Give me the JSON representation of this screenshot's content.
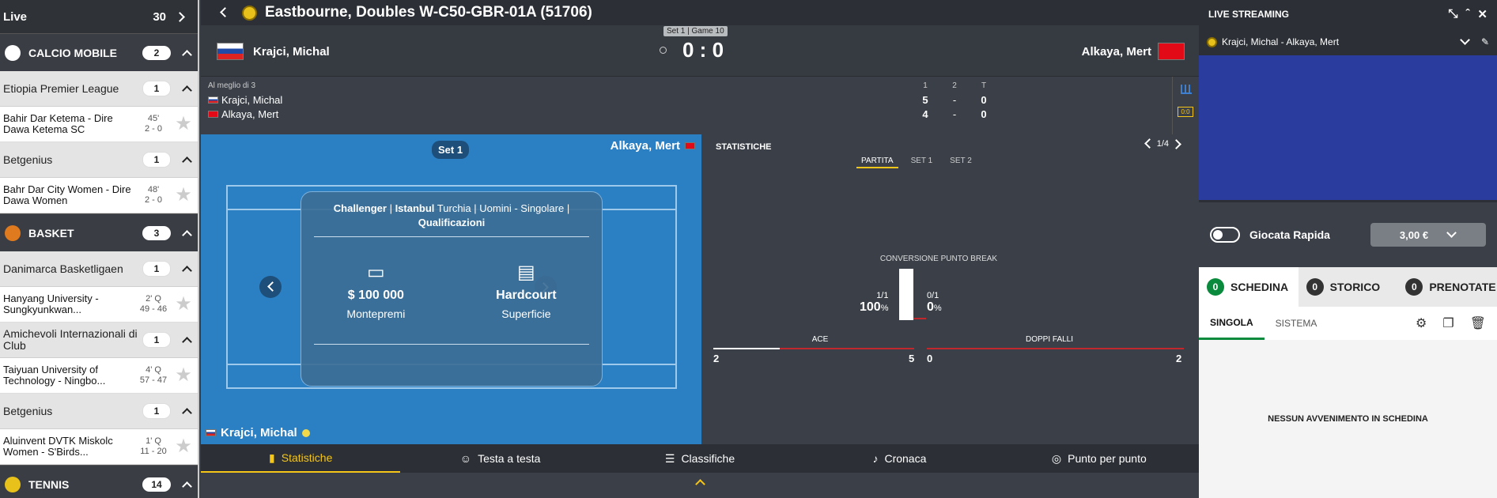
{
  "sidebar": {
    "live_label": "Live",
    "live_count": "30",
    "rows": [
      {
        "kind": "sport",
        "name": "CALCIO MOBILE",
        "count": "2",
        "color": "#ffffff"
      },
      {
        "kind": "comp",
        "name": "Etiopia Premier League",
        "count": "1"
      },
      {
        "kind": "match",
        "name": "Bahir Dar Ketema - Dire Dawa Ketema SC",
        "time": "45'",
        "score": "2 - 0"
      },
      {
        "kind": "comp",
        "name": "Betgenius",
        "count": "1"
      },
      {
        "kind": "match",
        "name": "Bahr Dar City Women - Dire Dawa Women",
        "time": "48'",
        "score": "2 - 0"
      },
      {
        "kind": "sport",
        "name": "BASKET",
        "count": "3",
        "color": "#e07a1f"
      },
      {
        "kind": "comp",
        "name": "Danimarca Basketligaen",
        "count": "1"
      },
      {
        "kind": "match",
        "name": "Hanyang University - Sungkyunkwan...",
        "time": "2' Q",
        "score": "49 - 46"
      },
      {
        "kind": "comp",
        "name": "Amichevoli Internazionali di Club",
        "count": "1"
      },
      {
        "kind": "match",
        "name": "Taiyuan University of Technology - Ningbo...",
        "time": "4' Q",
        "score": "57 - 47"
      },
      {
        "kind": "comp",
        "name": "Betgenius",
        "count": "1"
      },
      {
        "kind": "match",
        "name": "Aluinvent DVTK Miskolc Women - S'Birds...",
        "time": "1' Q",
        "score": "11 - 20"
      },
      {
        "kind": "sport",
        "name": "TENNIS",
        "count": "14",
        "color": "#e8c21a"
      }
    ]
  },
  "header": {
    "title": "Eastbourne, Doubles W-C50-GBR-01A (51706)"
  },
  "scoreboard": {
    "set_label": "Set 1 | Game 10",
    "player1": "Krajci, Michal",
    "player2": "Alkaya, Mert",
    "score": "0 : 0"
  },
  "table": {
    "format": "Al meglio di 3",
    "cols": [
      "1",
      "2",
      "T"
    ],
    "p1": {
      "name": "Krajci, Michal",
      "s1": "5",
      "s2": "-",
      "t": "0"
    },
    "p2": {
      "name": "Alkaya, Mert",
      "s1": "4",
      "s2": "-",
      "t": "0"
    }
  },
  "court": {
    "set_pill": "Set 1",
    "top_player": "Alkaya, Mert",
    "bottom_player": "Krajci, Michal",
    "card": {
      "line1_b1": "Challenger",
      "line1_b2": "Istanbul",
      "line1_t1": "Turchia",
      "line1_t2": "Uomini - Singolare",
      "line2": "Qualificazioni",
      "prize_value": "$ 100 000",
      "prize_label": "Montepremi",
      "surface_value": "Hardcourt",
      "surface_label": "Superficie"
    }
  },
  "stats": {
    "title": "STATISTICHE",
    "page": "1/4",
    "tabs": [
      "PARTITA",
      "SET 1",
      "SET 2"
    ],
    "break_label": "CONVERSIONE PUNTO BREAK",
    "break_left_ratio": "1/1",
    "break_left_pct": "100",
    "break_right_ratio": "0/1",
    "break_right_pct": "0",
    "pct_sign": "%",
    "ace_label": "ACE",
    "ace_left": "2",
    "ace_right": "5",
    "df_label": "DOPPI FALLI",
    "df_left": "0",
    "df_right": "2"
  },
  "bottom_tabs": [
    "Statistiche",
    "Testa a testa",
    "Classifiche",
    "Cronaca",
    "Punto per punto"
  ],
  "right": {
    "streaming_title": "LIVE STREAMING",
    "stream_match": "Krajci, Michal - Alkaya, Mert",
    "quick_label": "Giocata Rapida",
    "amount": "3,00 €",
    "tabs": [
      {
        "n": "0",
        "label": "SCHEDINA"
      },
      {
        "n": "0",
        "label": "STORICO"
      },
      {
        "n": "0",
        "label": "PRENOTATE"
      }
    ],
    "sub_tabs": [
      "SINGOLA",
      "SISTEMA"
    ],
    "empty": "NESSUN AVVENIMENTO IN SCHEDINA"
  },
  "colors": {
    "accent": "#f5c518",
    "green": "#0a8a3c",
    "court": "#2b7fc3",
    "video": "#2a3c9e"
  }
}
